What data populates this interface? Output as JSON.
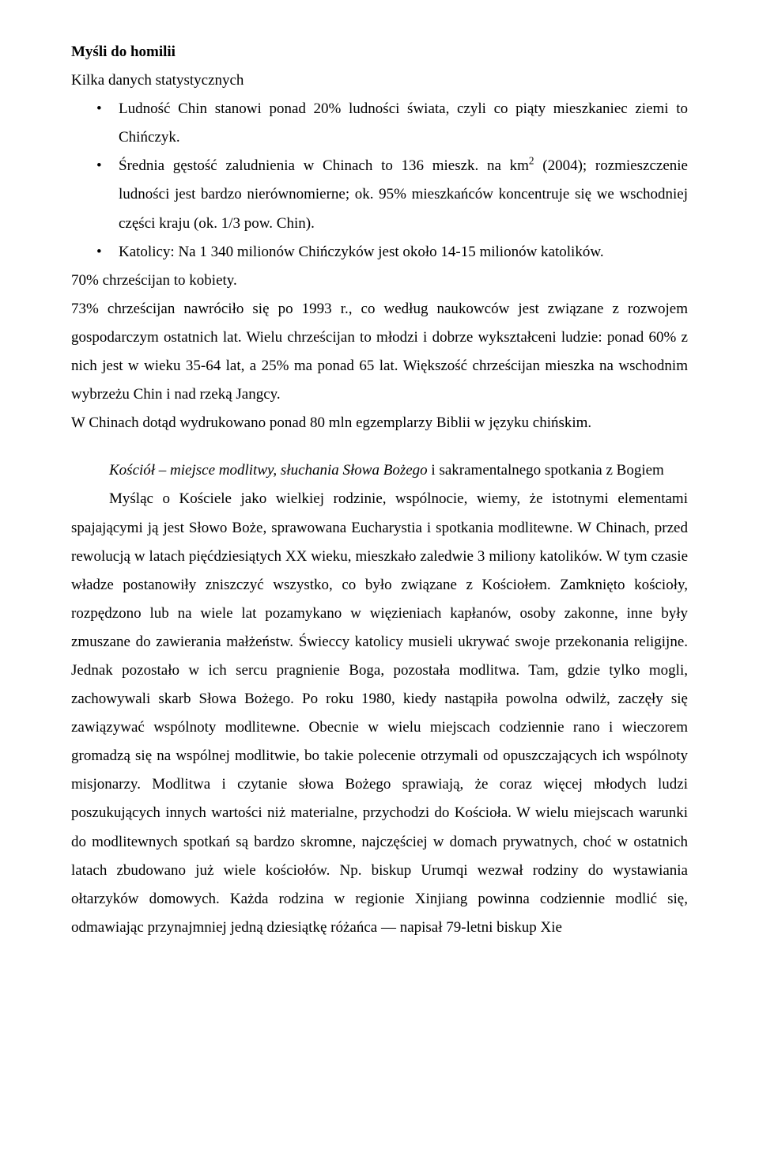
{
  "colors": {
    "background": "#ffffff",
    "text": "#000000"
  },
  "typography": {
    "font_family": "Times New Roman",
    "base_fontsize_pt": 14,
    "line_height": 1.9
  },
  "document": {
    "title": "Myśli do homilii",
    "subtitle": "Kilka danych statystycznych",
    "bullets": [
      {
        "text": "Ludność Chin stanowi ponad 20% ludności świata, czyli co piąty mieszkaniec ziemi to Chińczyk."
      },
      {
        "prefix": "Średnia gęstość zaludnienia w Chinach to 136 mieszk. na km",
        "sup": "2",
        "suffix": " (2004); rozmieszczenie ludności jest bardzo nierównomierne; ok. 95% mieszkańców koncentruje się we wschodniej części kraju (ok. 1/3 pow. Chin)."
      },
      {
        "text": "Katolicy: Na 1 340 milionów Chińczyków jest około 14-15 milionów katolików."
      }
    ],
    "para1": "70% chrześcijan to kobiety.",
    "para2": "73% chrześcijan nawróciło się po 1993 r., co według naukowców jest związane z rozwojem gospodarczym ostatnich lat. Wielu chrześcijan to młodzi i dobrze wykształceni ludzie: ponad 60% z nich jest w wieku 35-64 lat, a 25% ma ponad 65 lat. Większość chrześcijan mieszka na wschodnim wybrzeżu Chin i nad rzeką Jangcy.",
    "para3": "W Chinach dotąd wydrukowano ponad 80 mln egzemplarzy Biblii w języku chińskim.",
    "section2_lead_italic": "Kościół – miejsce modlitwy, słuchania Słowa Bożego",
    "section2_lead_rest": " i sakramentalnego spotkania z Bogiem",
    "para4": "Myśląc o Kościele jako wielkiej rodzinie, wspólnocie, wiemy, że istotnymi elementami spajającymi ją jest Słowo Boże, sprawowana Eucharystia i spotkania modlitewne. W Chinach, przed rewolucją w latach pięćdziesiątych XX wieku, mieszkało zaledwie 3 miliony katolików. W tym czasie władze postanowiły zniszczyć wszystko, co było związane z Kościołem. Zamknięto kościoły, rozpędzono lub na wiele lat pozamykano w więzieniach kapłanów, osoby zakonne, inne były zmuszane do zawierania małżeństw. Świeccy katolicy musieli ukrywać swoje przekonania religijne. Jednak pozostało w ich sercu pragnienie Boga, pozostała modlitwa. Tam, gdzie tylko mogli, zachowywali skarb Słowa Bożego. Po roku 1980, kiedy nastąpiła powolna odwilż, zaczęły się zawiązywać wspólnoty modlitewne. Obecnie w wielu miejscach codziennie rano i wieczorem gromadzą się na wspólnej modlitwie, bo takie polecenie otrzymali od opuszczających ich wspólnoty misjonarzy. Modlitwa i czytanie słowa Bożego sprawiają, że coraz więcej młodych ludzi poszukujących innych wartości niż materialne, przychodzi do Kościoła. W wielu miejscach warunki do modlitewnych spotkań są bardzo skromne, najczęściej w domach prywatnych, choć w ostatnich latach zbudowano już wiele kościołów. Np. biskup Urumqi wezwał rodziny do wystawiania ołtarzyków domowych. Każda rodzina w regionie Xinjiang powinna codziennie modlić się, odmawiając przynajmniej jedną dziesiątkę różańca — napisał 79-letni biskup Xie"
  }
}
